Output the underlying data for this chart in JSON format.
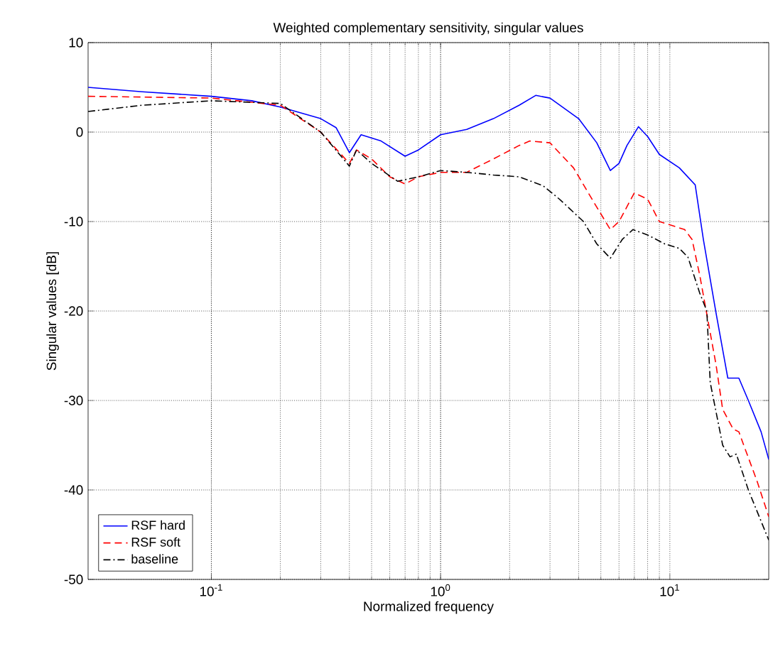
{
  "chart_data": {
    "type": "line",
    "title": "Weighted complementary sensitivity, singular values",
    "xlabel": "Normalized frequency",
    "ylabel": "Singular values [dB]",
    "xlim": [
      0.029,
      27
    ],
    "ylim": [
      -50,
      10
    ],
    "xticks": [
      {
        "value": 0.1,
        "label": "10$^{-1}$"
      },
      {
        "value": 1,
        "label": "10$^{0}$"
      },
      {
        "value": 10,
        "label": "10$^{1}$"
      }
    ],
    "yticks": [
      -50,
      -40,
      -30,
      -20,
      -10,
      0,
      10
    ],
    "log": "x",
    "grid": true,
    "legend": "bottom left",
    "series": [
      {
        "name": "RSF hard",
        "color": "#0000ff",
        "line_style": "solid",
        "x": [
          0.029,
          0.05,
          0.1,
          0.15,
          0.2,
          0.3,
          0.35,
          0.4,
          0.45,
          0.55,
          0.7,
          0.8,
          1.0,
          1.3,
          1.7,
          2.2,
          2.6,
          3,
          4,
          4.8,
          5.5,
          6,
          6.5,
          7.3,
          8,
          9,
          11,
          12.9,
          14,
          15.9,
          17.9,
          20,
          22,
          25,
          27
        ],
        "values": [
          5,
          4.5,
          4,
          3.5,
          2.8,
          1.5,
          0.5,
          -2.3,
          -0.3,
          -1,
          -2.7,
          -2,
          -0.3,
          0.3,
          1.5,
          3,
          4.1,
          3.8,
          1.5,
          -1.2,
          -4.3,
          -3.5,
          -1.5,
          0.6,
          -0.5,
          -2.5,
          -4,
          -5.9,
          -12,
          -20.2,
          -27.5,
          -27.5,
          -30,
          -33.5,
          -36.6
        ]
      },
      {
        "name": "RSF soft",
        "color": "#ff0000",
        "line_style": "dashed",
        "x": [
          0.029,
          0.1,
          0.2,
          0.3,
          0.4,
          0.43,
          0.5,
          0.6,
          0.7,
          0.8,
          1.0,
          1.3,
          1.7,
          2.2,
          2.45,
          3,
          3.8,
          4.7,
          5.5,
          6,
          7,
          8,
          9,
          11.6,
          12.5,
          13.5,
          15.9,
          17,
          18.9,
          20,
          21,
          24,
          27
        ],
        "values": [
          4,
          3.8,
          3,
          0,
          -3.5,
          -2,
          -3,
          -5,
          -5.8,
          -5,
          -4.5,
          -4.5,
          -3,
          -1.5,
          -1,
          -1.2,
          -4,
          -8,
          -10.9,
          -10,
          -6.8,
          -7.5,
          -10,
          -10.9,
          -12,
          -16,
          -26,
          -31,
          -33.2,
          -33.5,
          -35,
          -39,
          -43
        ]
      },
      {
        "name": "baseline",
        "color": "#000000",
        "line_style": "dashdot",
        "x": [
          0.029,
          0.05,
          0.1,
          0.2,
          0.3,
          0.4,
          0.43,
          0.5,
          0.65,
          0.8,
          1.0,
          1.3,
          1.7,
          2.2,
          2.8,
          3.3,
          4.2,
          4.8,
          5.5,
          6.2,
          6.9,
          8,
          9.5,
          11,
          12,
          13.5,
          14.5,
          15,
          17,
          18.3,
          19.5,
          22,
          27
        ],
        "values": [
          2.3,
          3,
          3.5,
          3.2,
          0,
          -3.8,
          -2,
          -3.5,
          -5.5,
          -5,
          -4.3,
          -4.5,
          -4.8,
          -5,
          -6,
          -7.5,
          -10,
          -12.5,
          -14.1,
          -12,
          -10.9,
          -11.5,
          -12.5,
          -13,
          -14,
          -18,
          -20,
          -28,
          -35,
          -36.3,
          -36,
          -40,
          -45.6
        ]
      }
    ]
  }
}
